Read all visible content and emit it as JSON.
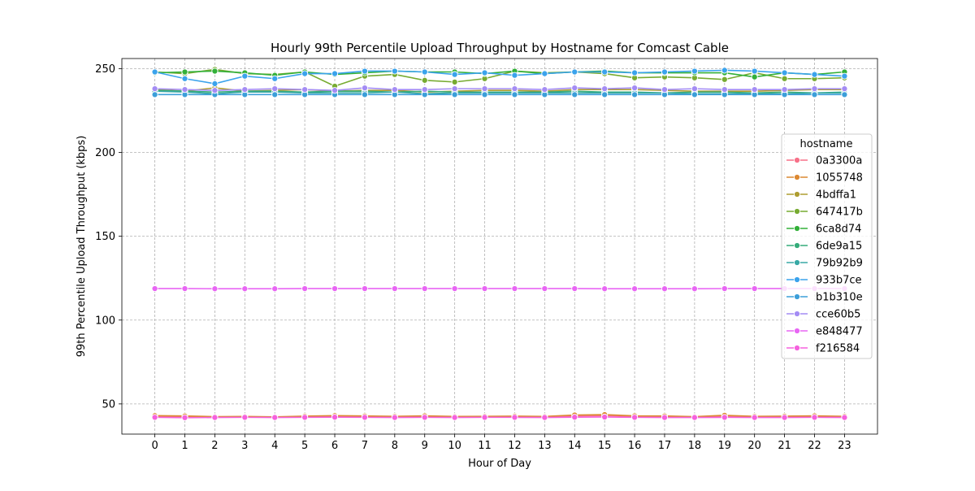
{
  "chart_data": {
    "type": "line",
    "title": "Hourly 99th Percentile Upload Throughput by Hostname for Comcast Cable",
    "xlabel": "Hour of Day",
    "ylabel": "99th Percentile Upload Throughput (kbps)",
    "x": [
      0,
      1,
      2,
      3,
      4,
      5,
      6,
      7,
      8,
      9,
      10,
      11,
      12,
      13,
      14,
      15,
      16,
      17,
      18,
      19,
      20,
      21,
      22,
      23
    ],
    "xlim": [
      -1.1,
      24.1
    ],
    "ylim": [
      32,
      256
    ],
    "yticks": [
      50,
      100,
      150,
      200,
      250
    ],
    "grid": true,
    "legend_title": "hostname",
    "legend_position": "center-right",
    "series": [
      {
        "name": "0a3300a",
        "color": "#f77189",
        "values": [
          42.5,
          42.3,
          42.1,
          42.2,
          42.0,
          42.3,
          42.4,
          42.5,
          42.2,
          42.4,
          42.3,
          42.2,
          42.3,
          42.1,
          42.8,
          43.0,
          42.6,
          42.4,
          42.3,
          42.5,
          42.2,
          42.4,
          42.6,
          42.3
        ]
      },
      {
        "name": "1055748",
        "color": "#dc8932",
        "values": [
          43.0,
          42.8,
          42.4,
          42.5,
          42.3,
          42.7,
          43.0,
          42.8,
          42.6,
          42.9,
          42.5,
          42.6,
          42.7,
          42.5,
          43.4,
          43.6,
          42.9,
          42.8,
          42.4,
          43.2,
          42.6,
          42.7,
          42.9,
          42.6
        ]
      },
      {
        "name": "4bdffa1",
        "color": "#ae9d31",
        "values": [
          237.5,
          236.5,
          238.5,
          236.5,
          237.0,
          237.5,
          236.5,
          237.0,
          237.0,
          236.0,
          236.5,
          237.0,
          237.0,
          236.5,
          237.5,
          237.5,
          237.5,
          237.0,
          236.5,
          236.5,
          236.5,
          237.0,
          237.5,
          237.5
        ]
      },
      {
        "name": "647417b",
        "color": "#77ab31",
        "values": [
          248.0,
          247.0,
          249.5,
          247.0,
          246.5,
          248.0,
          239.5,
          245.5,
          246.5,
          243.0,
          242.0,
          244.0,
          248.5,
          247.5,
          248.0,
          247.0,
          244.5,
          245.0,
          244.5,
          243.5,
          247.5,
          244.0,
          244.0,
          244.5
        ]
      },
      {
        "name": "6ca8d74",
        "color": "#33b039",
        "values": [
          247.5,
          248.0,
          248.5,
          247.5,
          246.0,
          248.0,
          246.5,
          247.5,
          248.5,
          248.0,
          248.0,
          247.0,
          248.5,
          247.0,
          248.0,
          248.5,
          247.5,
          247.5,
          247.5,
          247.5,
          245.0,
          247.5,
          246.5,
          248.0
        ]
      },
      {
        "name": "6de9a15",
        "color": "#35ac7a",
        "values": [
          237.0,
          236.5,
          236.0,
          236.5,
          236.5,
          236.0,
          236.5,
          236.5,
          236.0,
          236.5,
          236.0,
          236.0,
          236.0,
          236.0,
          236.5,
          236.0,
          236.0,
          235.5,
          236.0,
          236.0,
          235.5,
          236.0,
          235.5,
          236.0
        ]
      },
      {
        "name": "79b92b9",
        "color": "#38a9a5",
        "values": [
          236.5,
          236.0,
          235.0,
          236.0,
          236.0,
          235.5,
          235.5,
          235.5,
          236.0,
          235.0,
          235.5,
          235.5,
          235.5,
          235.5,
          235.5,
          235.5,
          235.5,
          235.5,
          235.0,
          235.0,
          235.0,
          235.0,
          235.5,
          235.5
        ]
      },
      {
        "name": "933b7ce",
        "color": "#3ba3ec",
        "values": [
          248.0,
          244.0,
          241.0,
          245.5,
          244.0,
          247.0,
          247.0,
          248.5,
          248.5,
          248.0,
          246.5,
          247.5,
          246.0,
          247.0,
          248.0,
          248.0,
          247.5,
          248.0,
          248.5,
          249.0,
          248.5,
          247.5,
          246.5,
          245.5
        ]
      },
      {
        "name": "b1b310e",
        "color": "#3c9fd9",
        "values": [
          234.5,
          234.5,
          234.5,
          234.5,
          234.5,
          234.5,
          234.5,
          234.5,
          234.5,
          234.5,
          234.5,
          234.5,
          234.5,
          234.5,
          234.5,
          234.5,
          234.5,
          234.5,
          234.5,
          234.5,
          234.5,
          234.5,
          234.5,
          234.5
        ]
      },
      {
        "name": "cce60b5",
        "color": "#a48cf4",
        "values": [
          238.0,
          237.5,
          237.0,
          237.5,
          238.0,
          237.5,
          237.0,
          238.5,
          237.5,
          237.5,
          238.0,
          238.0,
          238.0,
          237.5,
          238.5,
          238.0,
          238.5,
          237.5,
          238.0,
          237.5,
          237.5,
          237.5,
          238.0,
          238.0
        ]
      },
      {
        "name": "e848477",
        "color": "#e866f4",
        "values": [
          118.8,
          118.8,
          118.7,
          118.7,
          118.7,
          118.8,
          118.8,
          118.8,
          118.8,
          118.8,
          118.8,
          118.8,
          118.8,
          118.8,
          118.8,
          118.7,
          118.7,
          118.7,
          118.7,
          118.8,
          118.8,
          118.8,
          118.8,
          118.8
        ]
      },
      {
        "name": "f216584",
        "color": "#f561dd",
        "values": [
          42.0,
          41.8,
          41.9,
          42.0,
          41.9,
          42.0,
          42.1,
          42.0,
          41.9,
          42.0,
          41.9,
          42.0,
          42.0,
          41.9,
          42.1,
          42.2,
          42.0,
          41.9,
          41.9,
          42.0,
          41.9,
          41.9,
          42.0,
          41.9
        ]
      }
    ]
  }
}
